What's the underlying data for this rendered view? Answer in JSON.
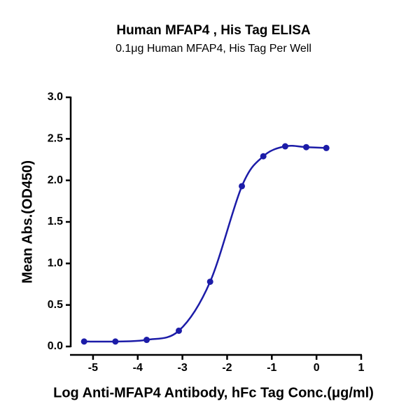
{
  "chart_data": {
    "type": "scatter",
    "title": "Human MFAP4 , His Tag ELISA",
    "subtitle": "0.1μg Human MFAP4, His Tag Per Well",
    "xlabel": "Log Anti-MFAP4 Antibody, hFc Tag Conc.(μg/ml)",
    "ylabel": "Mean Abs.(OD450)",
    "x": [
      -5.2,
      -4.5,
      -3.8,
      -3.08,
      -2.38,
      -1.67,
      -1.19,
      -0.7,
      -0.23,
      0.22
    ],
    "values": [
      0.06,
      0.06,
      0.08,
      0.19,
      0.78,
      1.93,
      2.29,
      2.41,
      2.4,
      2.39
    ],
    "color": "#1c1ca8",
    "xlim": [
      -5.5,
      1
    ],
    "xticks": [
      -5,
      -4,
      -3,
      -2,
      -1,
      0,
      1
    ],
    "ylim": [
      0,
      3
    ],
    "yticks": [
      {
        "value": 0,
        "label": "0.0"
      },
      0.5,
      {
        "value": 1,
        "label": "1.0"
      },
      1.5,
      {
        "value": 2,
        "label": "2.0"
      },
      2.5,
      {
        "value": 3,
        "label": "3.0"
      }
    ]
  }
}
